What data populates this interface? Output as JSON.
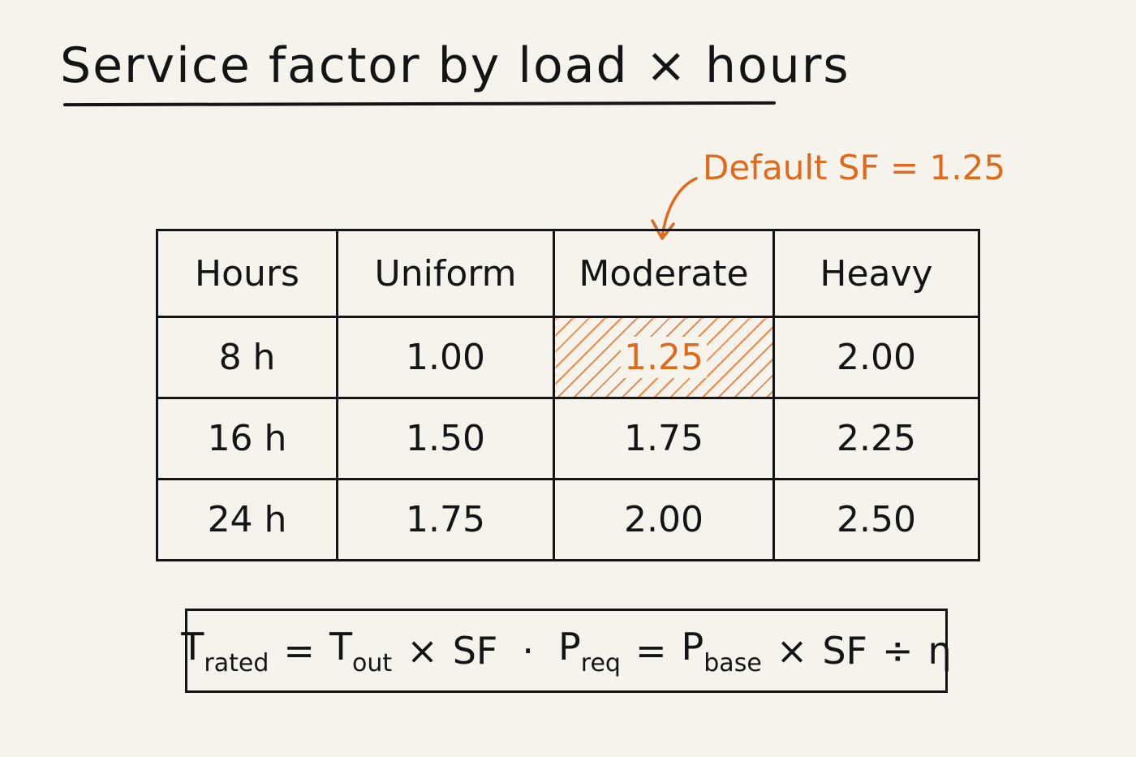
{
  "title": "Service factor by load × hours",
  "annotation": "Default SF = 1.25",
  "accent_color": "#e06a1c",
  "table": {
    "headers": [
      "Hours",
      "Uniform",
      "Moderate",
      "Heavy"
    ],
    "rows": [
      {
        "hours": "8 h",
        "uniform": "1.00",
        "moderate": "1.25",
        "heavy": "2.00"
      },
      {
        "hours": "16 h",
        "uniform": "1.50",
        "moderate": "1.75",
        "heavy": "2.25"
      },
      {
        "hours": "24 h",
        "uniform": "1.75",
        "moderate": "2.00",
        "heavy": "2.50"
      }
    ],
    "highlighted_cell": "8 h / Moderate"
  },
  "formula": {
    "t_symbol": "T",
    "t_rated_sub": "rated",
    "equals": "=",
    "t_out_sub": "out",
    "times": "×",
    "sf": "SF",
    "separator": "·",
    "p_symbol": "P",
    "p_req_sub": "req",
    "p_base_sub": "base",
    "divide": "÷",
    "eta": "η"
  }
}
